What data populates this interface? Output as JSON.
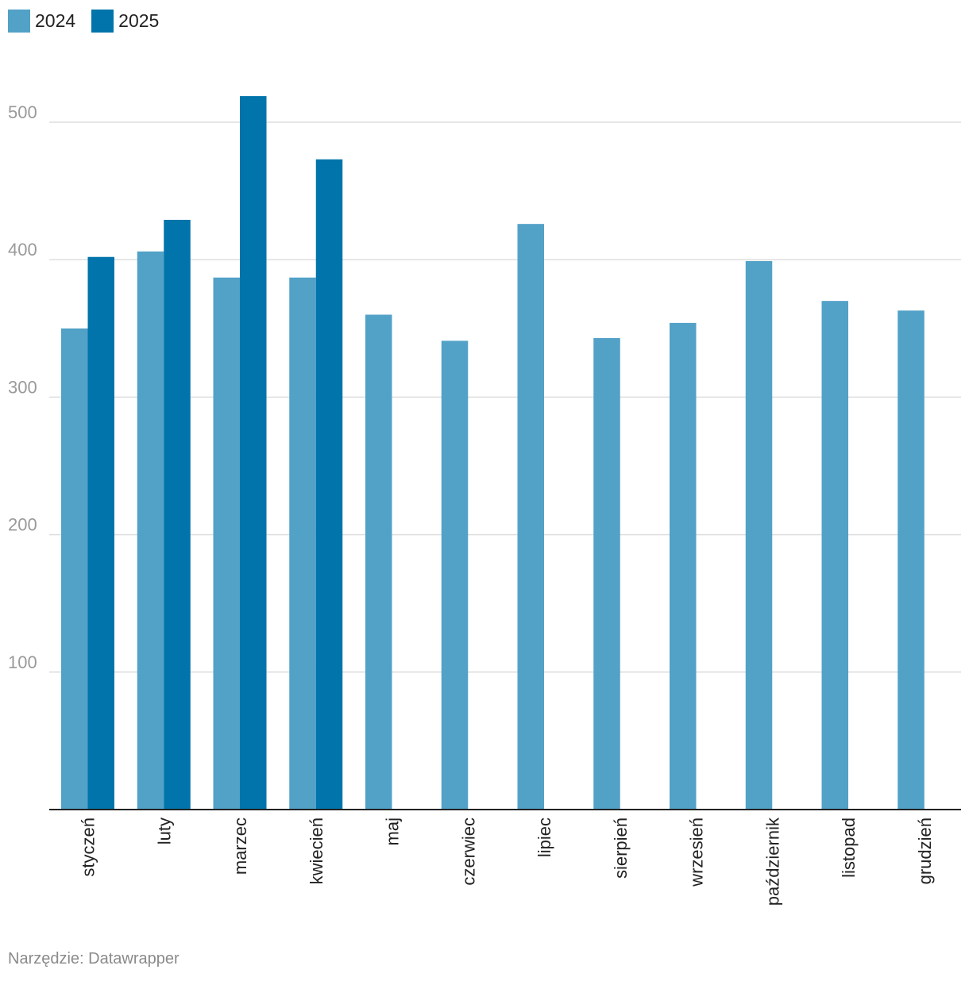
{
  "chart_data": {
    "type": "bar",
    "categories": [
      "styczeń",
      "luty",
      "marzec",
      "kwiecień",
      "maj",
      "czerwiec",
      "lipiec",
      "sierpień",
      "wrzesień",
      "październik",
      "listopad",
      "grudzień"
    ],
    "series": [
      {
        "name": "2024",
        "color": "#52a1c7",
        "values": [
          350,
          406,
          387,
          387,
          360,
          341,
          426,
          343,
          354,
          399,
          370,
          363
        ]
      },
      {
        "name": "2025",
        "color": "#0074ab",
        "values": [
          402,
          429,
          519,
          473,
          null,
          null,
          null,
          null,
          null,
          null,
          null,
          null
        ]
      }
    ],
    "yticks": [
      100,
      200,
      300,
      400,
      500
    ],
    "ylim": [
      0,
      500
    ],
    "grid": true,
    "legend_position": "top-left"
  },
  "footer": {
    "source": "Narzędzie: Datawrapper"
  }
}
